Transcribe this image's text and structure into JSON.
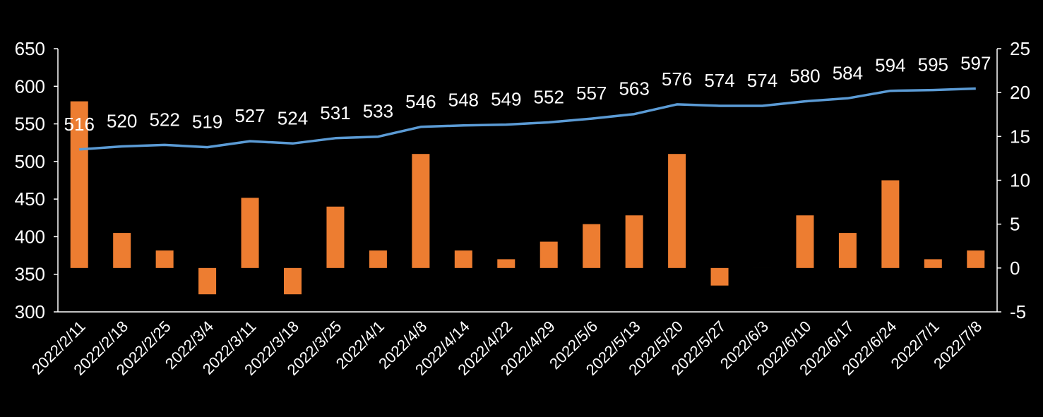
{
  "chart_data": {
    "type": "bar+line",
    "title": "",
    "categories": [
      "2022/2/11",
      "2022/2/18",
      "2022/2/25",
      "2022/3/4",
      "2022/3/11",
      "2022/3/18",
      "2022/3/25",
      "2022/4/1",
      "2022/4/8",
      "2022/4/14",
      "2022/4/22",
      "2022/4/29",
      "2022/5/6",
      "2022/5/13",
      "2022/5/20",
      "2022/5/27",
      "2022/6/3",
      "2022/6/10",
      "2022/6/17",
      "2022/6/24",
      "2022/7/1",
      "2022/7/8"
    ],
    "series": [
      {
        "name": "line-series",
        "type": "line",
        "axis": "left",
        "color": "#5b9bd5",
        "values": [
          516,
          520,
          522,
          519,
          527,
          524,
          531,
          533,
          546,
          548,
          549,
          552,
          557,
          563,
          576,
          574,
          574,
          580,
          584,
          594,
          595,
          597
        ],
        "labels": [
          "516",
          "520",
          "522",
          "519",
          "527",
          "524",
          "531",
          "533",
          "546",
          "548",
          "549",
          "552",
          "557",
          "563",
          "576",
          "574",
          "574",
          "580",
          "584",
          "594",
          "595",
          "597"
        ]
      },
      {
        "name": "bar-series",
        "type": "bar",
        "axis": "right",
        "color": "#ed7d31",
        "values": [
          19,
          4,
          2,
          -3,
          8,
          -3,
          7,
          2,
          13,
          2,
          1,
          3,
          5,
          6,
          13,
          -2,
          0,
          6,
          4,
          10,
          1,
          2
        ]
      }
    ],
    "y_left": {
      "min": 300,
      "max": 650,
      "ticks": [
        "300",
        "350",
        "400",
        "450",
        "500",
        "550",
        "600",
        "650"
      ]
    },
    "y_right": {
      "min": -5,
      "max": 25,
      "ticks": [
        "-5",
        "0",
        "5",
        "10",
        "15",
        "20",
        "25"
      ]
    },
    "grid": false,
    "legend": "none",
    "background": "#000000",
    "text_color": "#ffffff"
  }
}
